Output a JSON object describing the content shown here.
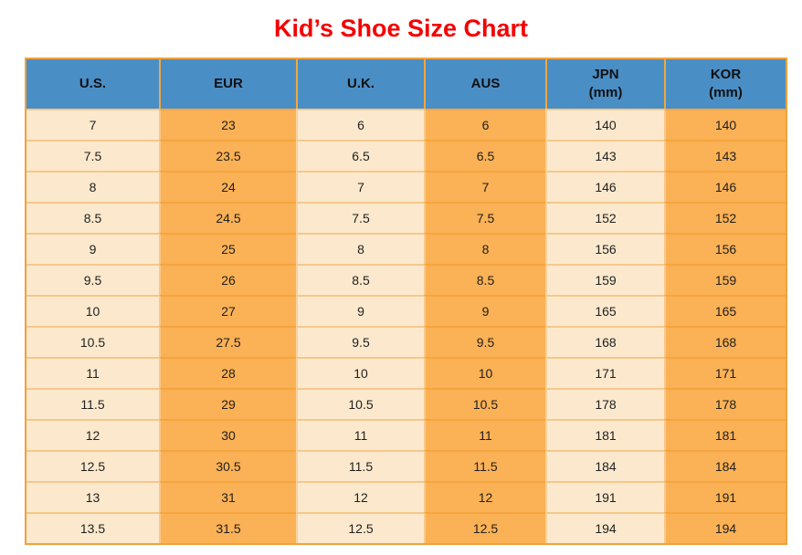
{
  "page": {
    "title": "Kid’s Shoe Size Chart"
  },
  "colors": {
    "title_red": "#f50000",
    "header_blue": "#4a8ec6",
    "orange_cell": "#fbb155",
    "cream_cell": "#fce9cd",
    "border_orange": "#f0a23c",
    "text": "#1f1f1f"
  },
  "chart_data": {
    "type": "table",
    "title": "Kid’s Shoe Size Chart",
    "columns": [
      {
        "label": "U.S.",
        "sub": ""
      },
      {
        "label": "EUR",
        "sub": ""
      },
      {
        "label": "U.K.",
        "sub": ""
      },
      {
        "label": "AUS",
        "sub": ""
      },
      {
        "label": "JPN",
        "sub": "(mm)"
      },
      {
        "label": "KOR",
        "sub": "(mm)"
      }
    ],
    "rows": [
      [
        "7",
        "23",
        "6",
        "6",
        "140",
        "140"
      ],
      [
        "7.5",
        "23.5",
        "6.5",
        "6.5",
        "143",
        "143"
      ],
      [
        "8",
        "24",
        "7",
        "7",
        "146",
        "146"
      ],
      [
        "8.5",
        "24.5",
        "7.5",
        "7.5",
        "152",
        "152"
      ],
      [
        "9",
        "25",
        "8",
        "8",
        "156",
        "156"
      ],
      [
        "9.5",
        "26",
        "8.5",
        "8.5",
        "159",
        "159"
      ],
      [
        "10",
        "27",
        "9",
        "9",
        "165",
        "165"
      ],
      [
        "10.5",
        "27.5",
        "9.5",
        "9.5",
        "168",
        "168"
      ],
      [
        "11",
        "28",
        "10",
        "10",
        "171",
        "171"
      ],
      [
        "11.5",
        "29",
        "10.5",
        "10.5",
        "178",
        "178"
      ],
      [
        "12",
        "30",
        "11",
        "11",
        "181",
        "181"
      ],
      [
        "12.5",
        "30.5",
        "11.5",
        "11.5",
        "184",
        "184"
      ],
      [
        "13",
        "31",
        "12",
        "12",
        "191",
        "191"
      ],
      [
        "13.5",
        "31.5",
        "12.5",
        "12.5",
        "194",
        "194"
      ]
    ]
  }
}
